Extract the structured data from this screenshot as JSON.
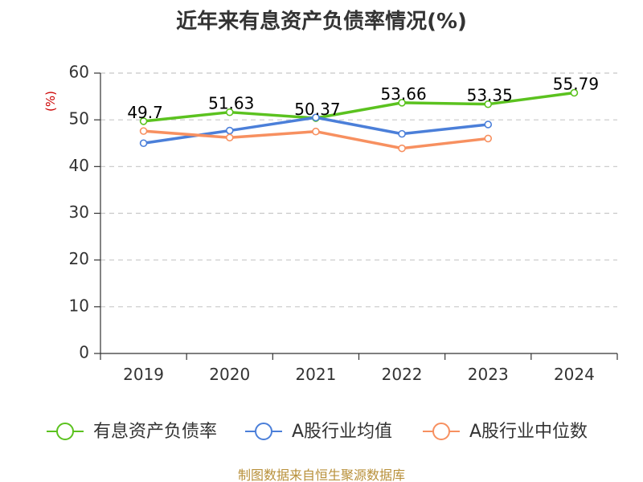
{
  "chart_data": {
    "type": "line",
    "title": "近年来有息资产负债率情况(%)",
    "ylabel": "(%)",
    "xlabel": "",
    "categories": [
      "2019",
      "2020",
      "2021",
      "2022",
      "2023",
      "2024"
    ],
    "ylim": [
      0,
      60
    ],
    "yticks": [
      0,
      10,
      20,
      30,
      40,
      50,
      60
    ],
    "grid": true,
    "legend_position": "bottom",
    "series": [
      {
        "name": "有息资产负债率",
        "color": "#5bc21f",
        "values": [
          49.7,
          51.63,
          50.37,
          53.66,
          53.35,
          55.79
        ],
        "labels": [
          "49.7",
          "51.63",
          "50.37",
          "53.66",
          "53.35",
          "55.79"
        ]
      },
      {
        "name": "A股行业均值",
        "color": "#4b7fd9",
        "values": [
          45.0,
          47.7,
          50.5,
          47.0,
          49.0,
          null
        ]
      },
      {
        "name": "A股行业中位数",
        "color": "#f79060",
        "values": [
          47.6,
          46.2,
          47.5,
          43.9,
          46.0,
          null
        ]
      }
    ]
  },
  "source": "制图数据来自恒生聚源数据库"
}
